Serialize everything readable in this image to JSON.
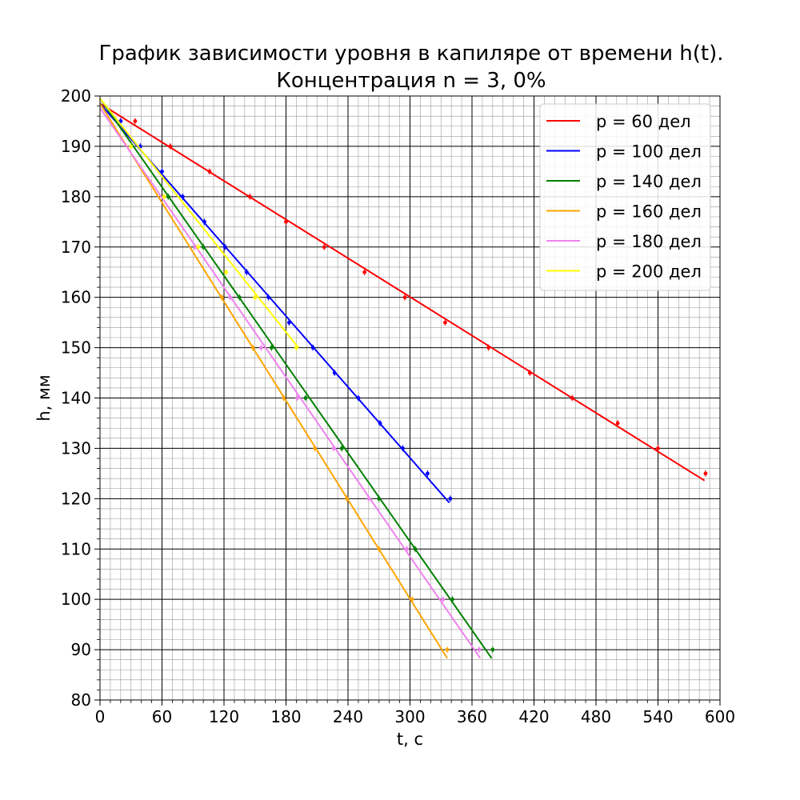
{
  "chart_data": {
    "type": "line",
    "title_line1": "График зависимости уровня в капиляре от времени h(t).",
    "title_line2": "Концентрация n = 3, 0%",
    "xlabel": "t, с",
    "ylabel": "h, мм",
    "xlim": [
      0,
      600
    ],
    "ylim": [
      80,
      200
    ],
    "x_major_step": 60,
    "x_minor_step": 10,
    "y_major_step": 10,
    "y_minor_step": 2,
    "x_ticks": [
      "0",
      "60",
      "120",
      "180",
      "240",
      "300",
      "360",
      "420",
      "480",
      "540",
      "600"
    ],
    "y_ticks": [
      "80",
      "90",
      "100",
      "110",
      "120",
      "130",
      "140",
      "150",
      "160",
      "170",
      "180",
      "190",
      "200"
    ],
    "grid": true,
    "legend_position": "top-right",
    "series": [
      {
        "name": "p = 60 дел",
        "color": "#ff0000",
        "fit": {
          "x": [
            0,
            585
          ],
          "y": [
            198.5,
            123.6
          ]
        },
        "points": [
          [
            20,
            195
          ],
          [
            34,
            195
          ],
          [
            68,
            190
          ],
          [
            106,
            185
          ],
          [
            145,
            180
          ],
          [
            180,
            175
          ],
          [
            217,
            170
          ],
          [
            256,
            165
          ],
          [
            295,
            160
          ],
          [
            334,
            155
          ],
          [
            376,
            150
          ],
          [
            416,
            145
          ],
          [
            457,
            140
          ],
          [
            501,
            135
          ],
          [
            540,
            130
          ],
          [
            586,
            125
          ]
        ]
      },
      {
        "name": "p = 100 дел",
        "color": "#0000ff",
        "fit": {
          "x": [
            0,
            338
          ],
          "y": [
            198.5,
            119.2
          ]
        },
        "points": [
          [
            20,
            195
          ],
          [
            39,
            190
          ],
          [
            60,
            185
          ],
          [
            80,
            180
          ],
          [
            101,
            175
          ],
          [
            121,
            170
          ],
          [
            142,
            165
          ],
          [
            163,
            160
          ],
          [
            183,
            155
          ],
          [
            206,
            150
          ],
          [
            227,
            145
          ],
          [
            250,
            140
          ],
          [
            271,
            135
          ],
          [
            293,
            130
          ],
          [
            317,
            125
          ],
          [
            339,
            120
          ]
        ]
      },
      {
        "name": "p = 140 дел",
        "color": "#008000",
        "fit": {
          "x": [
            0,
            379
          ],
          "y": [
            199.5,
            88.3
          ]
        },
        "points": [
          [
            66,
            180
          ],
          [
            100,
            170
          ],
          [
            135,
            160
          ],
          [
            166,
            150
          ],
          [
            199,
            140
          ],
          [
            234,
            130
          ],
          [
            270,
            120
          ],
          [
            305,
            110
          ],
          [
            341,
            100
          ],
          [
            380,
            90
          ]
        ]
      },
      {
        "name": "p = 160 дел",
        "color": "#ffa500",
        "fit": {
          "x": [
            0,
            336
          ],
          "y": [
            198.5,
            88.3
          ]
        },
        "points": [
          [
            118,
            160
          ],
          [
            148,
            150
          ],
          [
            178,
            140
          ],
          [
            208,
            130
          ],
          [
            239,
            120
          ],
          [
            270,
            110
          ],
          [
            302,
            100
          ],
          [
            336,
            90
          ]
        ]
      },
      {
        "name": "p = 180 дел",
        "color": "#ee82ee",
        "fit": {
          "x": [
            0,
            368
          ],
          "y": [
            197.6,
            88.3
          ]
        },
        "points": [
          [
            92,
            170
          ],
          [
            126,
            160
          ],
          [
            156,
            150
          ],
          [
            191,
            140
          ],
          [
            226,
            130
          ],
          [
            260,
            120
          ],
          [
            297,
            110
          ],
          [
            332,
            100
          ],
          [
            367,
            90
          ]
        ]
      },
      {
        "name": "p = 200 дел",
        "color": "#ffff00",
        "fit": {
          "x": [
            0,
            192
          ],
          "y": [
            199.5,
            150.0
          ]
        },
        "points": [
          [
            30,
            190
          ],
          [
            62,
            180
          ],
          [
            95,
            170
          ],
          [
            122,
            165
          ],
          [
            150,
            160
          ],
          [
            190,
            150
          ]
        ]
      }
    ]
  }
}
